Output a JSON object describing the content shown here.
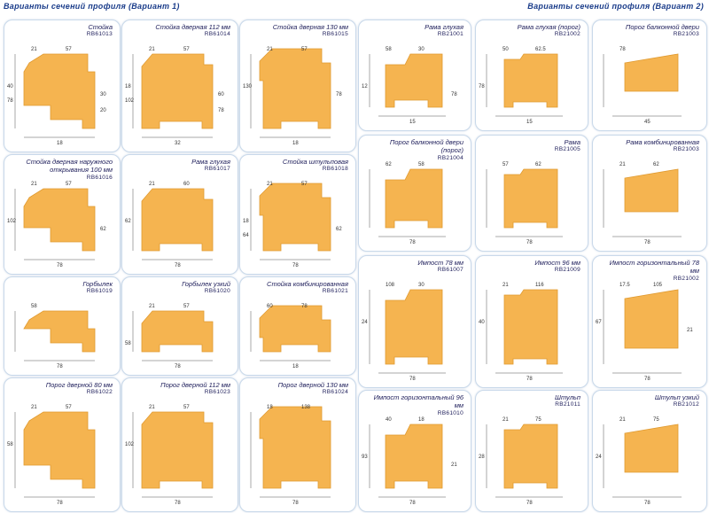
{
  "header": {
    "title_left": "Варианты сечений профиля (Вариант 1)",
    "title_right": "Варианты сечений профиля (Вариант 2)"
  },
  "colors": {
    "profile": "#f5b450",
    "profile_dark": "#e09a30",
    "card_border": "#c9d9ea",
    "text": "#1d1d5a"
  },
  "profiles": [
    {
      "name": "Стойка",
      "code": "RB61013",
      "dims": [
        "21",
        "57",
        "40",
        "30",
        "78",
        "20",
        "18"
      ]
    },
    {
      "name": "Стойка дверная 112 мм",
      "code": "RB61014",
      "dims": [
        "21",
        "57",
        "18",
        "60",
        "102",
        "78",
        "32"
      ]
    },
    {
      "name": "Стойка дверная 130 мм",
      "code": "RB61015",
      "dims": [
        "21",
        "57",
        "130",
        "78",
        "18"
      ]
    },
    {
      "name": "Рама глухая",
      "code": "RB21001",
      "dims": [
        "58",
        "30",
        "12",
        "78",
        "15"
      ]
    },
    {
      "name": "Рама глухая (порог)",
      "code": "RB21002",
      "dims": [
        "50",
        "62.5",
        "78",
        "15"
      ]
    },
    {
      "name": "Порог балконной двери",
      "code": "RB21003",
      "dims": [
        "78",
        "45"
      ]
    },
    {
      "name": "Стойка дверная наружного открывания 100 мм",
      "code": "RB61016",
      "dims": [
        "21",
        "57",
        "102",
        "62",
        "78"
      ]
    },
    {
      "name": "Рама глухая",
      "code": "RB61017",
      "dims": [
        "21",
        "60",
        "62",
        "78"
      ]
    },
    {
      "name": "Стойка штульповая",
      "code": "RB61018",
      "dims": [
        "21",
        "57",
        "18",
        "62",
        "64",
        "78"
      ]
    },
    {
      "name": "Порог балконной двери (порог)",
      "code": "RB21004",
      "dims": [
        "62",
        "58",
        "78"
      ]
    },
    {
      "name": "Рама",
      "code": "RB21005",
      "dims": [
        "57",
        "62",
        "78"
      ]
    },
    {
      "name": "Рама комбинированная",
      "code": "RB21003",
      "dims": [
        "21",
        "62",
        "78"
      ]
    },
    {
      "name": "Горбылек",
      "code": "RB61019",
      "dims": [
        "58",
        "78"
      ]
    },
    {
      "name": "Горбылек узкий",
      "code": "RB61020",
      "dims": [
        "21",
        "57",
        "58",
        "78"
      ]
    },
    {
      "name": "Стойка комбинированная",
      "code": "RB61021",
      "dims": [
        "60",
        "78",
        "18"
      ]
    },
    {
      "name": "Импост 78 мм",
      "code": "RB61007",
      "dims": [
        "108",
        "30",
        "24",
        "78"
      ]
    },
    {
      "name": "Импост 96 мм",
      "code": "RB21009",
      "dims": [
        "21",
        "116",
        "40",
        "78"
      ]
    },
    {
      "name": "Импост горизонтальный 78 мм",
      "code": "RB21002",
      "dims": [
        "17.5",
        "105",
        "67",
        "21",
        "78"
      ]
    },
    {
      "name": "Порог дверной 80 мм",
      "code": "RB61022",
      "dims": [
        "21",
        "57",
        "58",
        "78"
      ]
    },
    {
      "name": "Порог дверной 112 мм",
      "code": "RB61023",
      "dims": [
        "21",
        "57",
        "102",
        "78"
      ]
    },
    {
      "name": "Порог дверной 130 мм",
      "code": "RB61024",
      "dims": [
        "18",
        "138",
        "78"
      ]
    },
    {
      "name": "Импост горизонтальный 96 мм",
      "code": "RB61010",
      "dims": [
        "40",
        "18",
        "93",
        "21",
        "78"
      ]
    },
    {
      "name": "Штульп",
      "code": "RB21011",
      "dims": [
        "21",
        "75",
        "28",
        "78"
      ]
    },
    {
      "name": "Штульп узкий",
      "code": "RB21012",
      "dims": [
        "21",
        "75",
        "24",
        "78"
      ]
    }
  ]
}
